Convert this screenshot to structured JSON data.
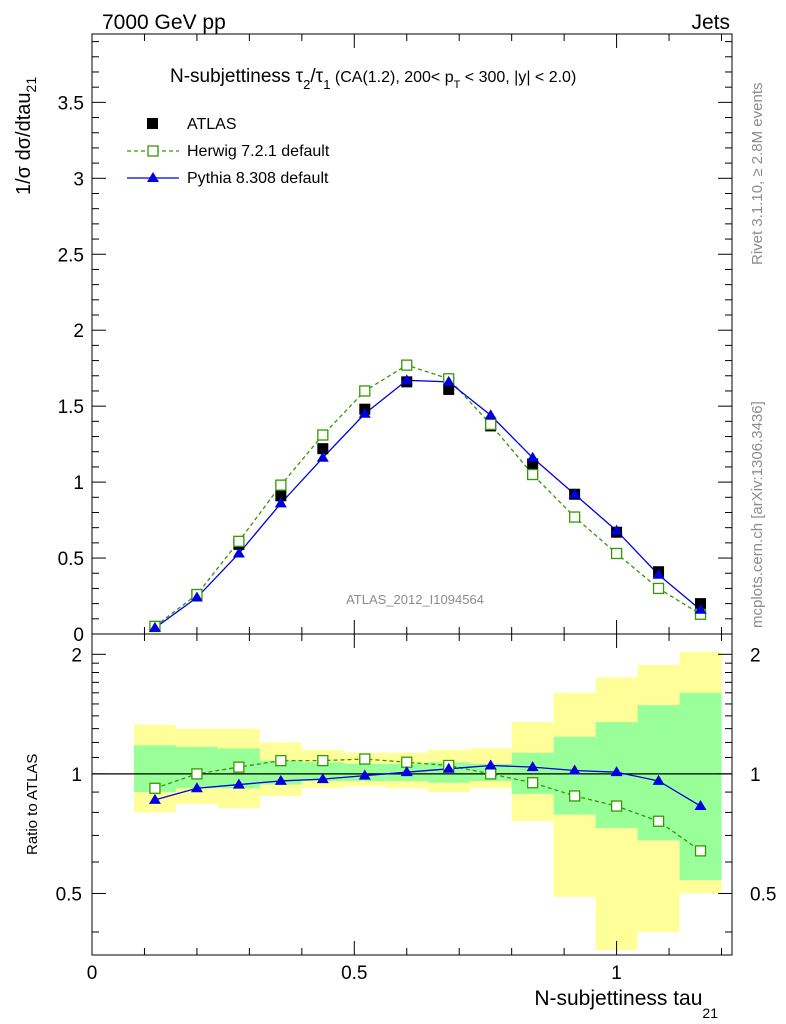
{
  "header": {
    "energy_label": "7000 GeV pp",
    "process_label": "Jets"
  },
  "side_labels": {
    "rivet": "Rivet 3.1.10, ≥ 2.8M events",
    "mcplots": "mcplots.cern.ch [arXiv:1306.3436]"
  },
  "watermark": "ATLAS_2012_I1094564",
  "colors": {
    "atlas": "#000000",
    "herwig": "#339900",
    "pythia": "#0000dd",
    "band_inner": "#99ff99",
    "band_outer": "#ffff99"
  },
  "chart_data": [
    {
      "type": "line",
      "title": {
        "main": "N-subjettiness τ",
        "sub2": "2",
        "slash": "/τ",
        "sub1": "1",
        "cuts_a": " (CA(1.2), 200< p",
        "cuts_sub": "T",
        "cuts_b": " < 300, |y| < 2.0)"
      },
      "ylabel": "1/σ dσ/dtau",
      "ylabel_sub": "21",
      "ylim": [
        0,
        3.95
      ],
      "xlim": [
        0,
        1.22
      ],
      "y_ticks": [
        "0",
        "0.5",
        "1",
        "1.5",
        "2",
        "2.5",
        "3",
        "3.5"
      ],
      "y_tick_values": [
        0,
        0.5,
        1,
        1.5,
        2,
        2.5,
        3,
        3.5
      ],
      "legend_position": "top-left",
      "x": [
        0.12,
        0.2,
        0.28,
        0.36,
        0.44,
        0.52,
        0.6,
        0.68,
        0.76,
        0.84,
        0.92,
        1.0,
        1.08,
        1.16
      ],
      "series": [
        {
          "name": "ATLAS",
          "style": "data",
          "values": [
            0.05,
            0.26,
            0.59,
            0.91,
            1.22,
            1.48,
            1.66,
            1.61,
            1.37,
            1.12,
            0.92,
            0.67,
            0.41,
            0.2
          ]
        },
        {
          "name": "Herwig 7.2.1 default",
          "style": "herwig",
          "values": [
            0.05,
            0.26,
            0.61,
            0.98,
            1.31,
            1.6,
            1.77,
            1.68,
            1.38,
            1.05,
            0.77,
            0.53,
            0.3,
            0.13
          ]
        },
        {
          "name": "Pythia 8.308 default",
          "style": "pythia",
          "values": [
            0.04,
            0.24,
            0.53,
            0.86,
            1.16,
            1.45,
            1.67,
            1.66,
            1.44,
            1.16,
            0.92,
            0.68,
            0.39,
            0.16
          ]
        }
      ]
    },
    {
      "type": "line",
      "ylabel": "Ratio to ATLAS",
      "xlabel": "N-subjettiness tau",
      "xlabel_sub": "21",
      "xlim": [
        0,
        1.22
      ],
      "ylim": [
        0.35,
        2.25
      ],
      "y_ticks": [
        "0.5",
        "1",
        "2"
      ],
      "y_tick_values": [
        0.5,
        1,
        2
      ],
      "x_ticks": [
        "0",
        "0.5",
        "1"
      ],
      "x_tick_values": [
        0,
        0.5,
        1
      ],
      "x": [
        0.12,
        0.2,
        0.28,
        0.36,
        0.44,
        0.52,
        0.6,
        0.68,
        0.76,
        0.84,
        0.92,
        1.0,
        1.08,
        1.16
      ],
      "bin_edges": [
        0.08,
        0.16,
        0.24,
        0.32,
        0.4,
        0.48,
        0.56,
        0.64,
        0.72,
        0.8,
        0.88,
        0.96,
        1.04,
        1.12,
        1.2
      ],
      "band_inner": [
        [
          0.9,
          1.18
        ],
        [
          0.92,
          1.17
        ],
        [
          0.92,
          1.16
        ],
        [
          0.94,
          1.08
        ],
        [
          0.96,
          1.07
        ],
        [
          0.96,
          1.06
        ],
        [
          0.96,
          1.06
        ],
        [
          0.95,
          1.07
        ],
        [
          0.96,
          1.06
        ],
        [
          0.89,
          1.13
        ],
        [
          0.79,
          1.24
        ],
        [
          0.73,
          1.35
        ],
        [
          0.68,
          1.49
        ],
        [
          0.54,
          1.6
        ]
      ],
      "band_outer": [
        [
          0.8,
          1.33
        ],
        [
          0.84,
          1.3
        ],
        [
          0.82,
          1.3
        ],
        [
          0.88,
          1.2
        ],
        [
          0.92,
          1.15
        ],
        [
          0.93,
          1.13
        ],
        [
          0.92,
          1.13
        ],
        [
          0.9,
          1.15
        ],
        [
          0.92,
          1.16
        ],
        [
          0.76,
          1.35
        ],
        [
          0.49,
          1.6
        ],
        [
          0.36,
          1.75
        ],
        [
          0.4,
          1.88
        ],
        [
          0.5,
          2.03
        ]
      ],
      "series": [
        {
          "name": "Herwig 7.2.1 default",
          "style": "herwig",
          "values": [
            0.92,
            1.0,
            1.04,
            1.08,
            1.08,
            1.09,
            1.07,
            1.05,
            1.0,
            0.95,
            0.88,
            0.83,
            0.76,
            0.64
          ]
        },
        {
          "name": "Pythia 8.308 default",
          "style": "pythia",
          "values": [
            0.86,
            0.92,
            0.94,
            0.96,
            0.97,
            0.99,
            1.01,
            1.03,
            1.05,
            1.04,
            1.02,
            1.01,
            0.96,
            0.83
          ]
        }
      ]
    }
  ]
}
